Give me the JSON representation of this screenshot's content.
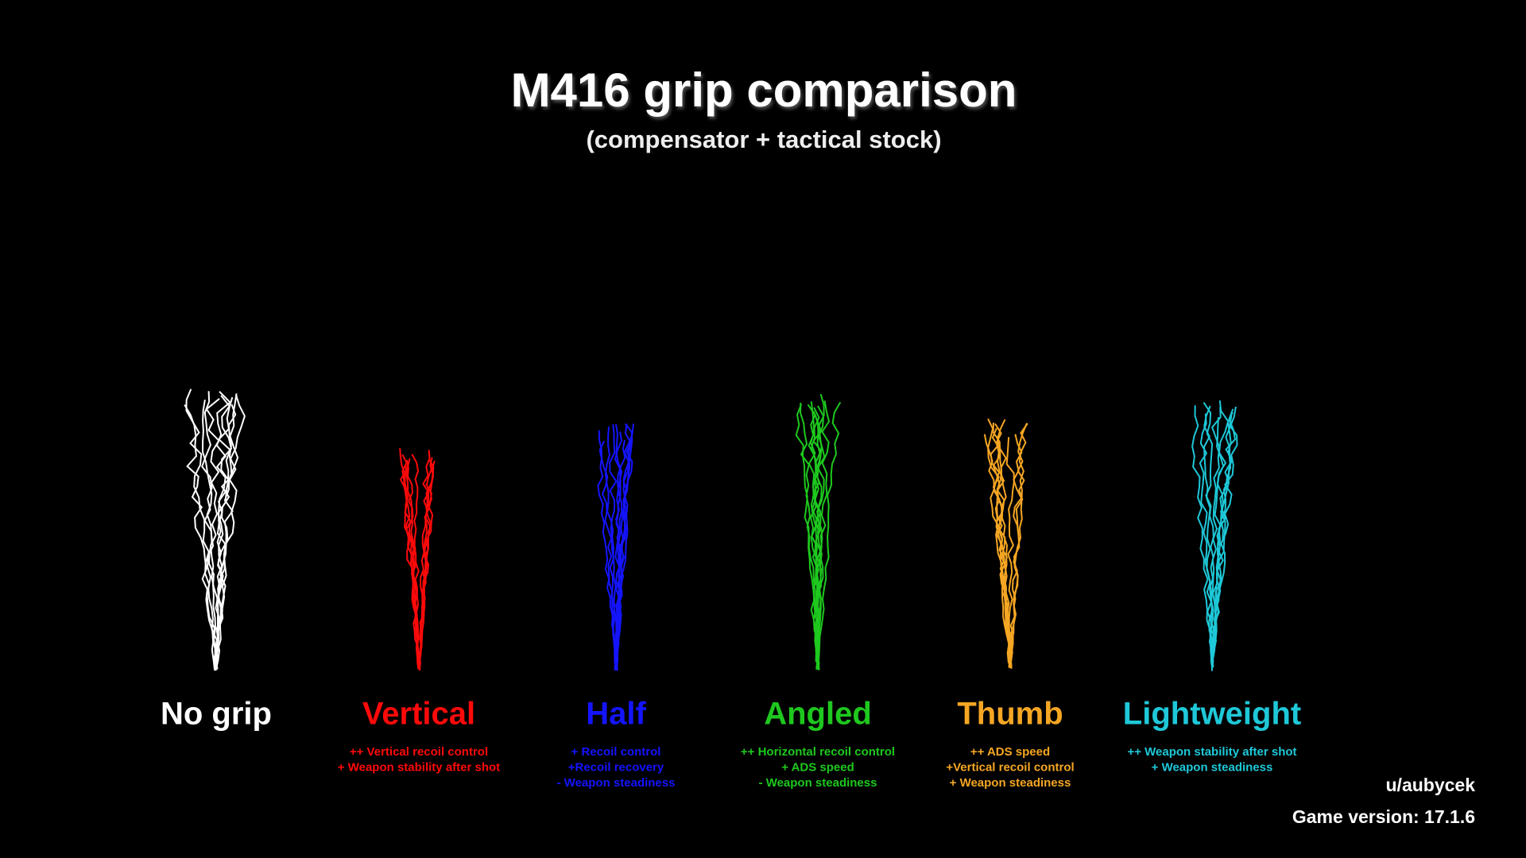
{
  "header": {
    "title": "M416 grip comparison",
    "subtitle": "(compensator + tactical stock)"
  },
  "grips": [
    {
      "name": "No grip",
      "color": "#ffffff",
      "notes": []
    },
    {
      "name": "Vertical",
      "color": "#ff0a0a",
      "notes": [
        "++ Vertical recoil control",
        "+ Weapon stability after shot"
      ]
    },
    {
      "name": "Half",
      "color": "#1414ff",
      "notes": [
        "+ Recoil control",
        "+Recoil recovery",
        "- Weapon steadiness"
      ]
    },
    {
      "name": "Angled",
      "color": "#1ec81e",
      "notes": [
        "++ Horizontal recoil control",
        "+ ADS speed",
        "- Weapon steadiness"
      ]
    },
    {
      "name": "Thumb",
      "color": "#f5a623",
      "notes": [
        "++ ADS speed",
        "+Vertical recoil control",
        "+ Weapon steadiness"
      ]
    },
    {
      "name": "Lightweight",
      "color": "#1ec8d8",
      "notes": [
        "++ Weapon stability after shot",
        "+ Weapon steadiness"
      ]
    }
  ],
  "footer": {
    "author": "u/aubycek",
    "version": "Game version: 17.1.6"
  }
}
